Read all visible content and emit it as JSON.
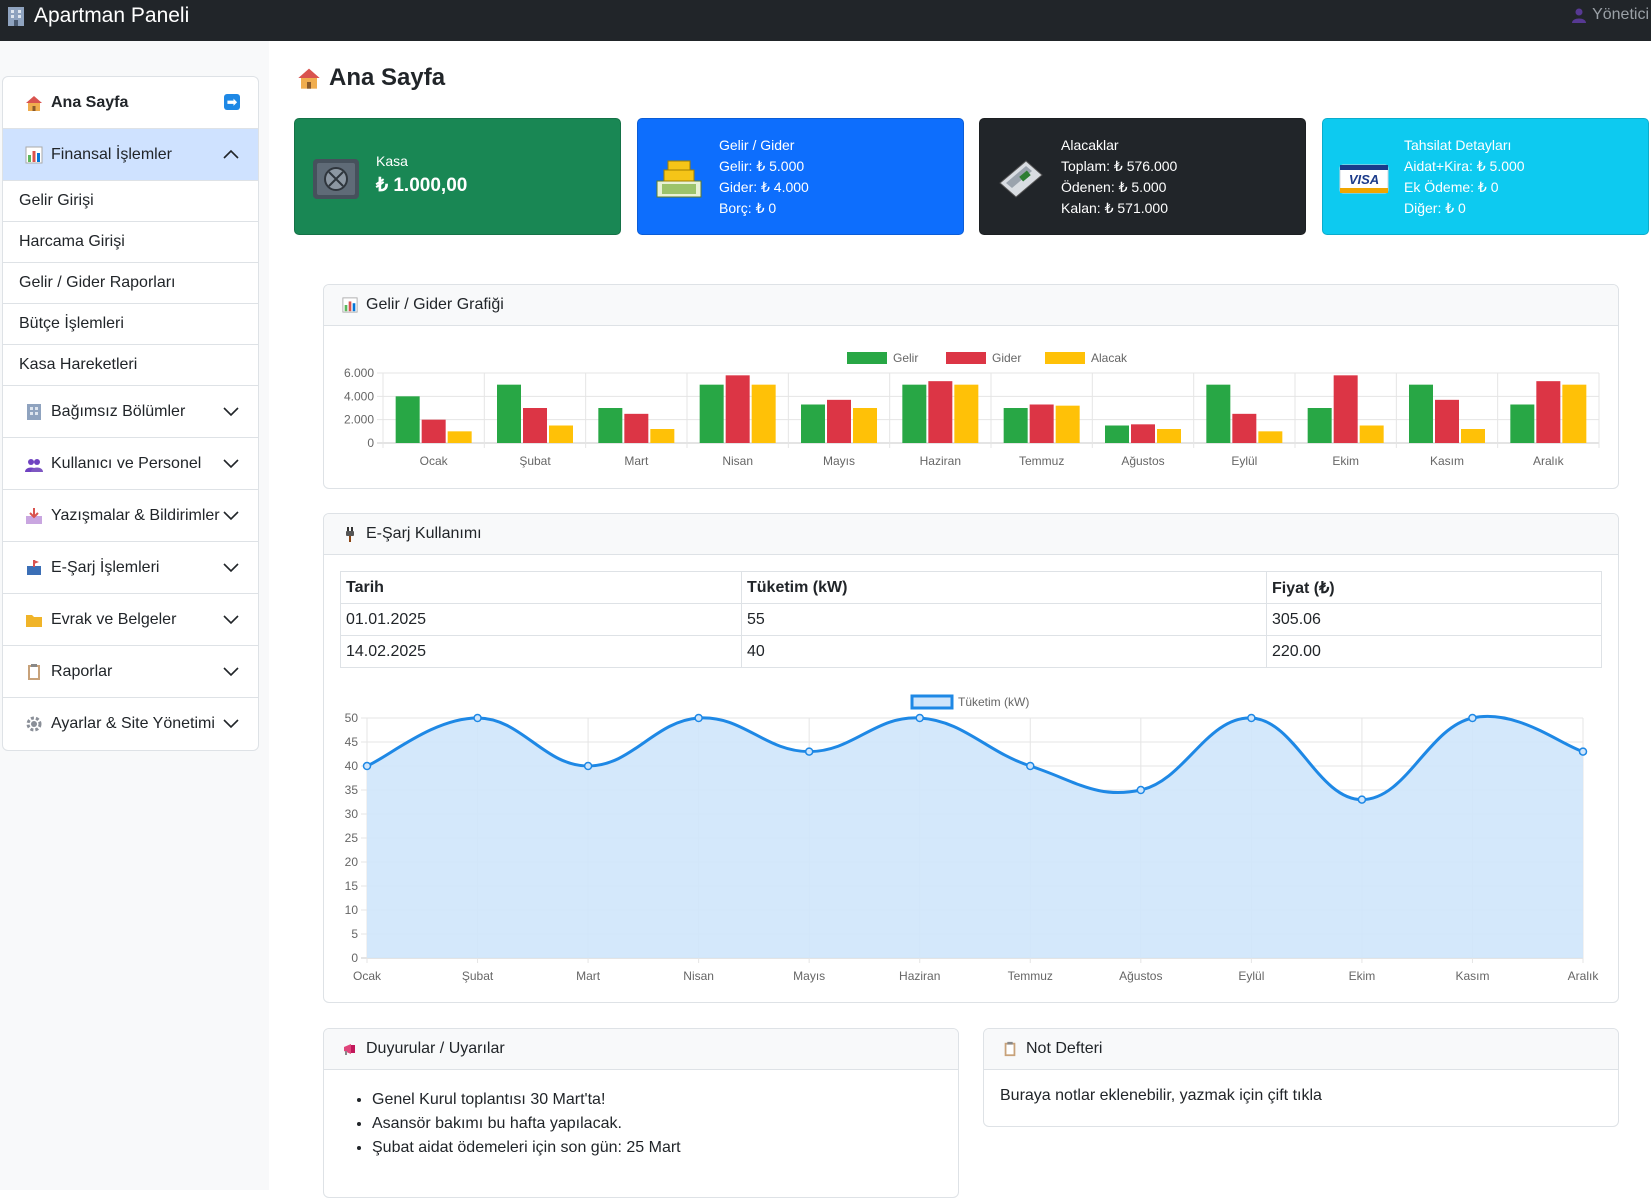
{
  "app": {
    "title": "Apartman Paneli",
    "user": "Yönetici"
  },
  "sidebar": {
    "home": "Ana Sayfa",
    "finance": "Finansal İşlemler",
    "finance_items": [
      "Gelir Girişi",
      "Harcama Girişi",
      "Gelir / Gider Raporları",
      "Bütçe İşlemleri",
      "Kasa Hareketleri"
    ],
    "sections": [
      "Bağımsız Bölümler",
      "Kullanıcı ve Personel",
      "Yazışmalar & Bildirimler",
      "E-Şarj İşlemleri",
      "Evrak ve Belgeler",
      "Raporlar",
      "Ayarlar & Site Yönetimi"
    ]
  },
  "page": {
    "title": "Ana Sayfa"
  },
  "cards": {
    "kasa": {
      "label": "Kasa",
      "value": "₺ 1.000,00",
      "color": "#198754"
    },
    "gelir_gider": {
      "title": "Gelir / Gider",
      "gelir": "Gelir: ₺ 5.000",
      "gider": "Gider: ₺ 4.000",
      "borc": "Borç: ₺ 0",
      "color": "#0d6efd"
    },
    "alacaklar": {
      "title": "Alacaklar",
      "toplam": "Toplam: ₺ 576.000",
      "odenen": "Ödenen: ₺ 5.000",
      "kalan": "Kalan: ₺ 571.000",
      "color": "#212529"
    },
    "tahsilat": {
      "title": "Tahsilat Detayları",
      "aidat": "Aidat+Kira: ₺ 5.000",
      "ek": "Ek Ödeme: ₺ 0",
      "diger": "Diğer: ₺ 0",
      "color": "#0dcaf0",
      "visa": "VISA"
    }
  },
  "panels": {
    "gg_chart": "Gelir / Gider Grafiği",
    "esarj": "E-Şarj Kullanımı",
    "duyurular": "Duyurular / Uyarılar",
    "not": "Not Defteri"
  },
  "esarj_table": {
    "headers": [
      "Tarih",
      "Tüketim (kW)",
      "Fiyat (₺)"
    ],
    "rows": [
      [
        "01.01.2025",
        "55",
        "305.06"
      ],
      [
        "14.02.2025",
        "40",
        "220.00"
      ]
    ]
  },
  "announcements": [
    "Genel Kurul toplantısı 30 Mart'ta!",
    "Asansör bakımı bu hafta yapılacak.",
    "Şubat aidat ödemeleri için son gün: 25 Mart"
  ],
  "note_text": "Buraya notlar eklenebilir, yazmak için çift tıkla",
  "chart_data": [
    {
      "type": "bar",
      "categories": [
        "Ocak",
        "Şubat",
        "Mart",
        "Nisan",
        "Mayıs",
        "Haziran",
        "Temmuz",
        "Ağustos",
        "Eylül",
        "Ekim",
        "Kasım",
        "Aralık"
      ],
      "series": [
        {
          "name": "Gelir",
          "color": "#28a745",
          "values": [
            4000,
            5000,
            3000,
            5000,
            3300,
            5000,
            3000,
            1500,
            5000,
            3000,
            5000,
            3300
          ]
        },
        {
          "name": "Gider",
          "color": "#dc3545",
          "values": [
            2000,
            3000,
            2500,
            5800,
            3700,
            5300,
            3300,
            1600,
            2500,
            5800,
            3700,
            5300
          ]
        },
        {
          "name": "Alacak",
          "color": "#ffc107",
          "values": [
            1000,
            1500,
            1200,
            5000,
            3000,
            5000,
            3200,
            1200,
            1000,
            1500,
            1200,
            5000
          ]
        }
      ],
      "yticks": [
        "6.000",
        "4.000",
        "2.000",
        "0"
      ],
      "ylim": [
        0,
        6000
      ],
      "legend": "top"
    },
    {
      "type": "area",
      "x": [
        "Ocak",
        "Şubat",
        "Mart",
        "Nisan",
        "Mayıs",
        "Haziran",
        "Temmuz",
        "Ağustos",
        "Eylül",
        "Ekim",
        "Kasım",
        "Aralık"
      ],
      "series": [
        {
          "name": "Tüketim (kW)",
          "color": "#1e88e5",
          "fill": "#cfe5fb",
          "values": [
            40,
            50,
            40,
            50,
            43,
            50,
            40,
            35,
            50,
            33,
            50,
            43
          ]
        }
      ],
      "yticks": [
        50,
        45,
        40,
        35,
        30,
        25,
        20,
        15,
        10,
        5,
        0
      ],
      "ylim": [
        0,
        50
      ],
      "legend": "top"
    }
  ]
}
